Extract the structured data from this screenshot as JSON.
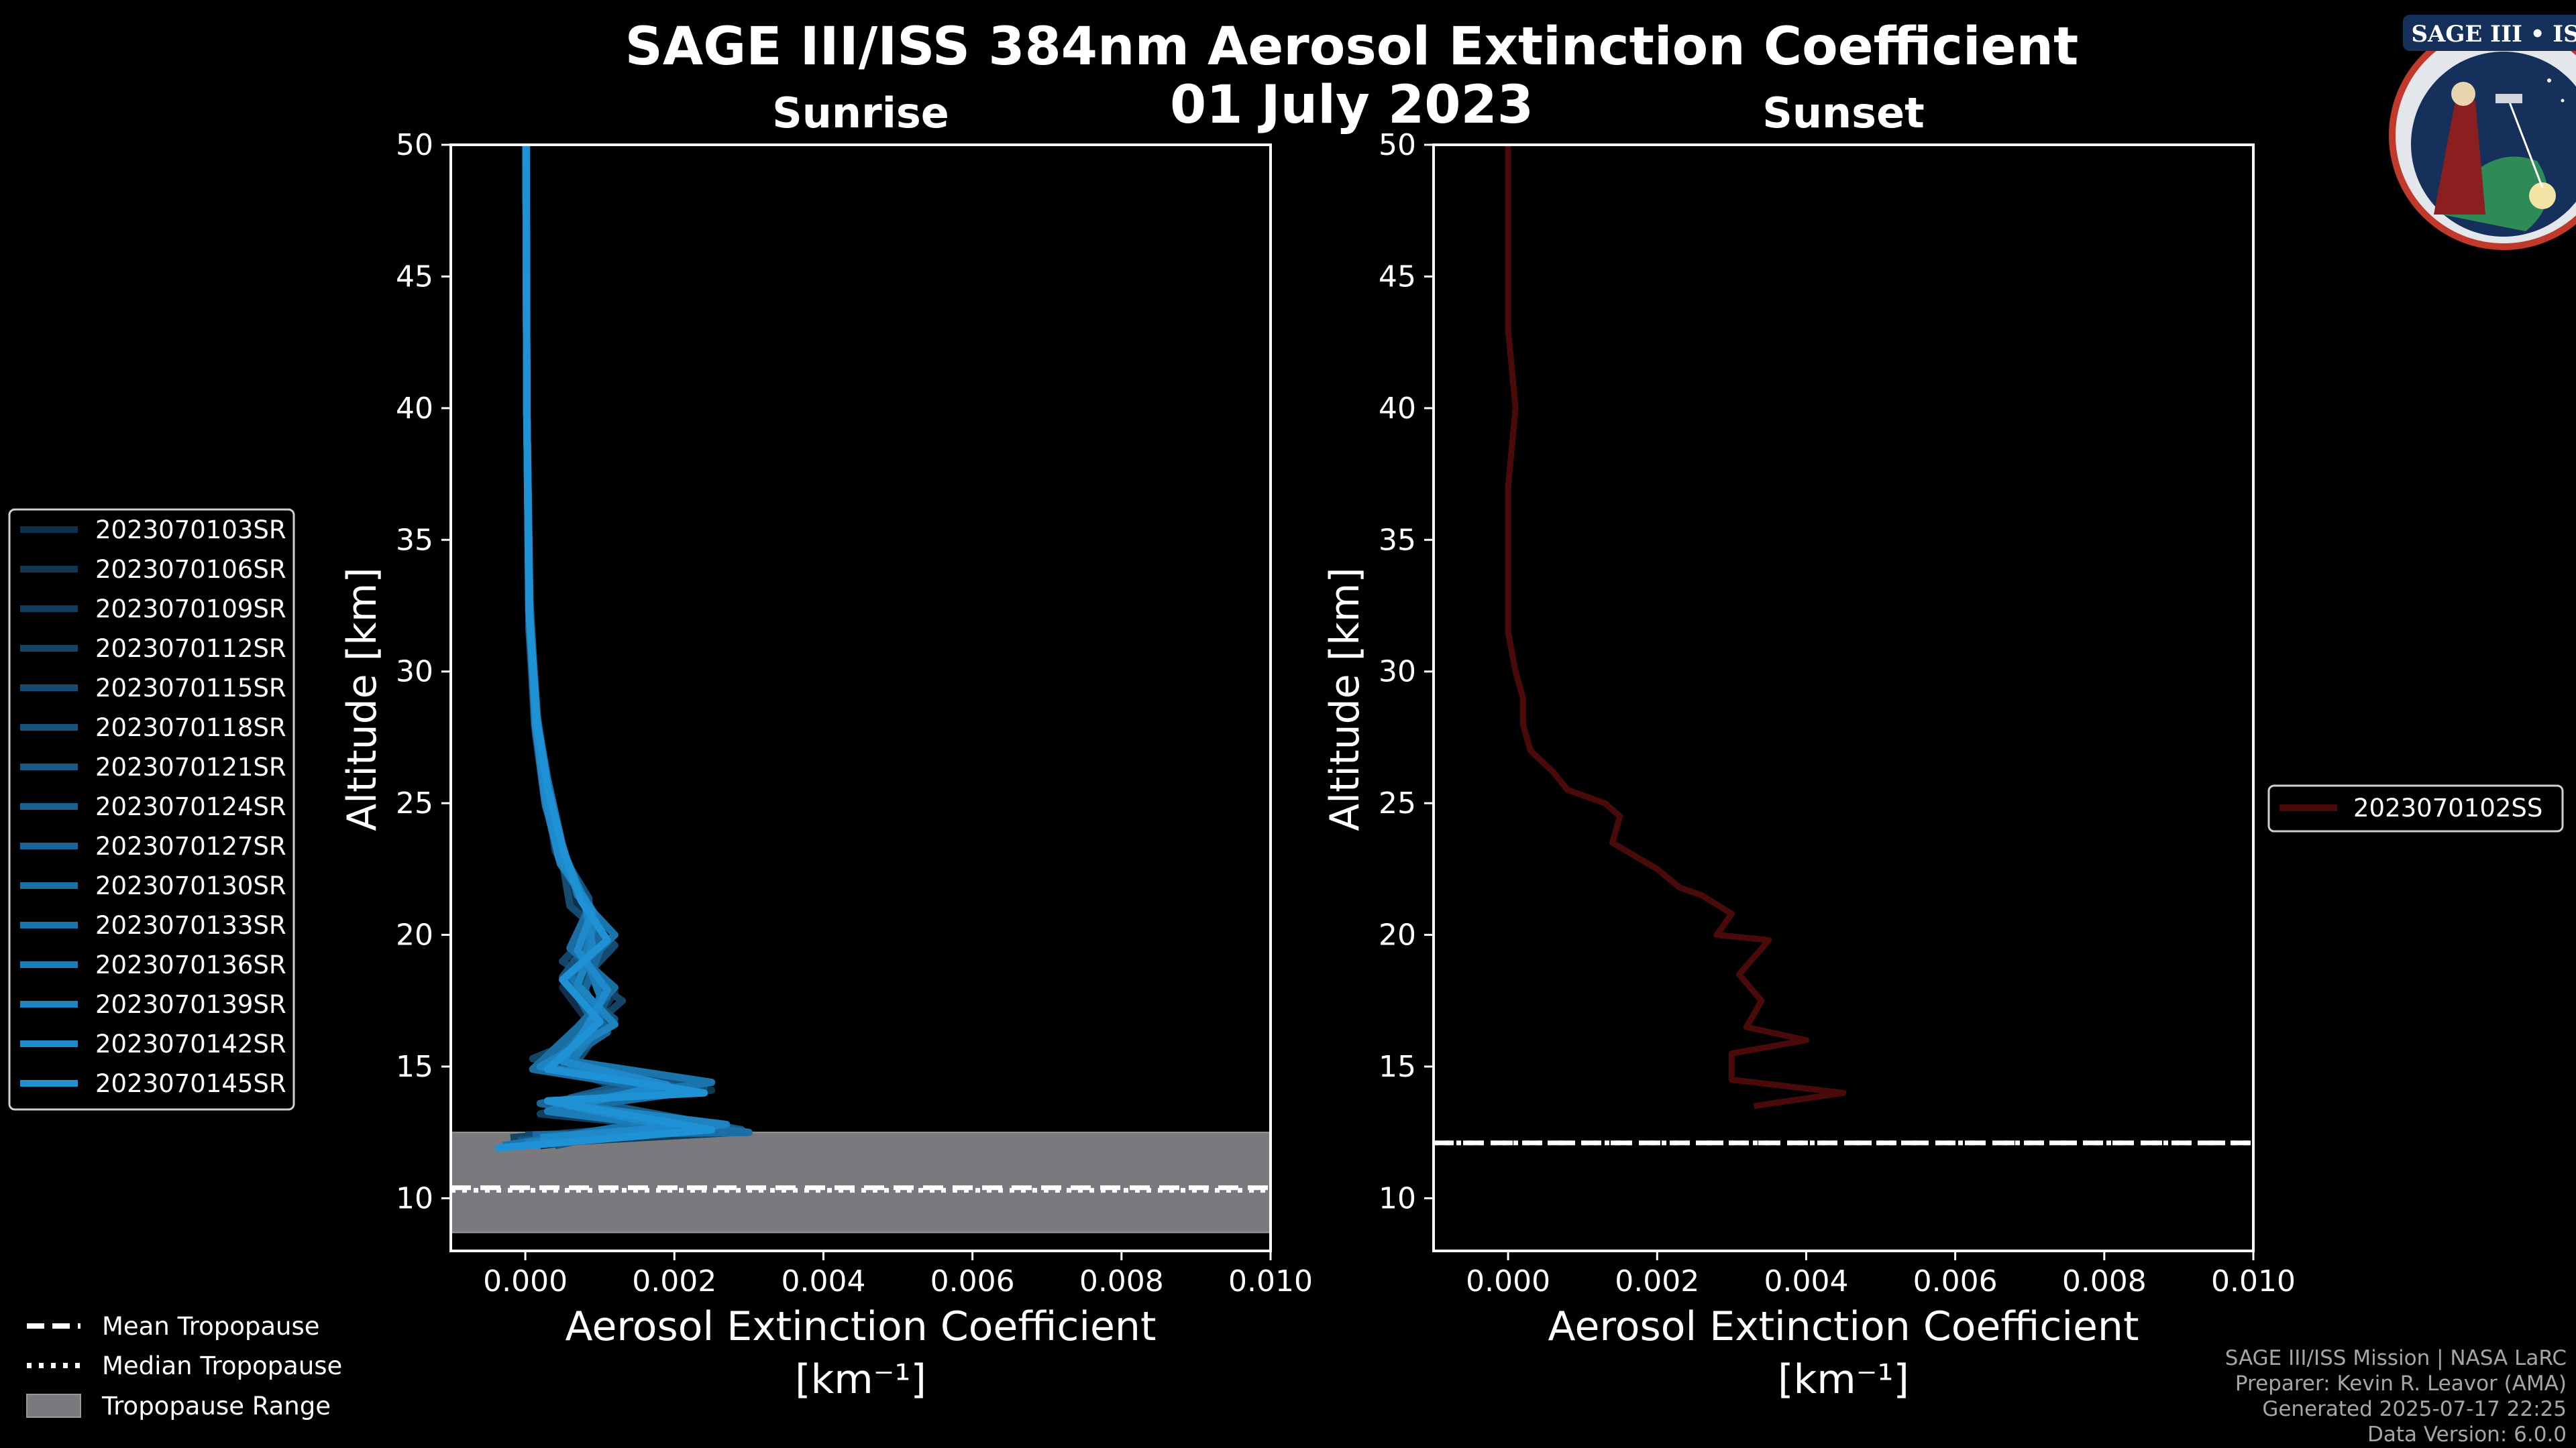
{
  "title": {
    "line1": "SAGE III/ISS 384nm Aerosol Extinction Coefficient",
    "line2": "01 July 2023"
  },
  "colors": {
    "background": "#000000",
    "sunrise_series_base": "#1b8fd6",
    "sunset_series": "#4a0a0a",
    "tropopause_range": "#7a7a7e",
    "axis": "#ffffff",
    "footer": "#a6a6a6"
  },
  "logo": {
    "text": "SAGE III • ISS",
    "icon": "sage-mission-patch-icon"
  },
  "footer": {
    "line1": "SAGE III/ISS Mission | NASA LaRC",
    "line2": "Preparer: Kevin R. Leavor (AMA)",
    "line3": "Generated 2025-07-17 22:25",
    "line4": "Data Version: 6.0.0"
  },
  "tropopause_legend": {
    "mean": "Mean Tropopause",
    "median": "Median Tropopause",
    "range": "Tropopause Range"
  },
  "chart_data": [
    {
      "type": "line",
      "title": "Sunrise",
      "xlabel": "Aerosol Extinction Coefficient",
      "xunit": "[km⁻¹]",
      "ylabel": "Altitude [km]",
      "xlim": [
        -0.001,
        0.01
      ],
      "ylim": [
        8,
        50
      ],
      "xticks": [
        "0.000",
        "0.002",
        "0.004",
        "0.006",
        "0.008",
        "0.010"
      ],
      "xtick_values": [
        0,
        0.002,
        0.004,
        0.006,
        0.008,
        0.01
      ],
      "yticks": [
        10,
        15,
        20,
        25,
        30,
        35,
        40,
        45,
        50
      ],
      "tropopause": {
        "mean": 10.4,
        "median": 10.3,
        "range": [
          8.7,
          12.5
        ]
      },
      "legend_position": "outside-left",
      "series": [
        {
          "name": "2023070103SR",
          "color": "#0f2f4a",
          "x": [
            0.0002,
            0.0023,
            0.0004,
            0.0017,
            0.0002,
            0.0009,
            0.0005,
            0.0011,
            0.0007,
            0.00045,
            0.00025,
            0.00012,
            5e-05,
            2e-05,
            2e-05
          ],
          "y": [
            12.0,
            12.7,
            13.5,
            14.3,
            15.2,
            16.5,
            18.0,
            19.5,
            21.0,
            23.0,
            25.5,
            28.0,
            32.0,
            40.0,
            50.0
          ]
        },
        {
          "name": "2023070106SR",
          "color": "#113652",
          "x": [
            0.0001,
            0.0018,
            0.0006,
            0.0025,
            0.0003,
            0.0008,
            0.0012,
            0.0006,
            0.0009,
            0.0005,
            0.0003,
            0.00015,
            6e-05,
            2e-05,
            1e-05
          ],
          "y": [
            12.2,
            12.9,
            13.6,
            14.1,
            14.9,
            16.2,
            17.8,
            19.2,
            20.8,
            22.8,
            25.0,
            27.5,
            31.5,
            40.0,
            50.0
          ]
        },
        {
          "name": "2023070109SR",
          "color": "#133d5c",
          "x": [
            0.0003,
            0.0028,
            0.0002,
            0.0015,
            0.0005,
            0.0011,
            0.0006,
            0.001,
            0.0008,
            0.0004,
            0.00028,
            0.00014,
            5e-05,
            2e-05,
            1e-05
          ],
          "y": [
            12.1,
            12.5,
            13.2,
            13.9,
            15.0,
            16.6,
            18.3,
            19.8,
            21.2,
            23.2,
            25.6,
            28.2,
            32.5,
            40.0,
            50.0
          ]
        },
        {
          "name": "2023070112SR",
          "color": "#144466",
          "x": [
            -0.0002,
            0.002,
            0.0007,
            0.0022,
            0.0001,
            0.0007,
            0.0013,
            0.0005,
            0.001,
            0.00055,
            0.00032,
            0.00016,
            6e-05,
            2e-05,
            1e-05
          ],
          "y": [
            12.3,
            12.8,
            13.7,
            14.4,
            15.3,
            16.0,
            17.5,
            19.0,
            20.5,
            22.5,
            24.8,
            27.8,
            31.8,
            40.0,
            50.0
          ]
        },
        {
          "name": "2023070115SR",
          "color": "#154b70",
          "x": [
            0.0,
            0.0026,
            0.0005,
            0.0019,
            0.0006,
            0.001,
            0.0007,
            0.0012,
            0.0006,
            0.00048,
            0.00026,
            0.00013,
            5e-05,
            2e-05,
            1e-05
          ],
          "y": [
            12.4,
            12.6,
            13.4,
            14.0,
            14.8,
            16.4,
            18.1,
            19.6,
            21.1,
            23.1,
            25.3,
            28.1,
            32.2,
            40.0,
            50.0
          ]
        },
        {
          "name": "2023070118SR",
          "color": "#16527a",
          "x": [
            0.0004,
            0.0019,
            0.0003,
            0.0024,
            0.0002,
            0.0012,
            0.0005,
            0.0009,
            0.00085,
            0.00042,
            0.0003,
            0.00015,
            6e-05,
            2e-05,
            1e-05
          ],
          "y": [
            12.0,
            12.9,
            13.3,
            14.2,
            15.1,
            16.8,
            18.4,
            19.9,
            21.4,
            23.4,
            25.8,
            28.4,
            32.8,
            40.0,
            50.0
          ]
        },
        {
          "name": "2023070121SR",
          "color": "#175985",
          "x": [
            -0.0001,
            0.0029,
            0.0006,
            0.0016,
            0.0004,
            0.0008,
            0.0011,
            0.0007,
            0.00095,
            0.00052,
            0.00027,
            0.00014,
            5e-05,
            2e-05,
            1e-05
          ],
          "y": [
            12.2,
            12.6,
            13.8,
            14.5,
            15.4,
            16.1,
            17.6,
            19.1,
            20.6,
            22.6,
            24.9,
            27.6,
            31.6,
            40.0,
            50.0
          ]
        },
        {
          "name": "2023070124SR",
          "color": "#18608f",
          "x": [
            0.0002,
            0.0021,
            0.0004,
            0.0023,
            0.0003,
            0.0009,
            0.0006,
            0.0011,
            0.00075,
            0.00046,
            0.00029,
            0.00016,
            6e-05,
            2e-05,
            1e-05
          ],
          "y": [
            12.1,
            12.8,
            13.5,
            14.1,
            15.0,
            16.7,
            18.2,
            19.7,
            21.3,
            23.3,
            25.7,
            28.3,
            32.4,
            40.0,
            50.0
          ]
        },
        {
          "name": "2023070127SR",
          "color": "#196799",
          "x": [
            0.0005,
            0.0024,
            0.0002,
            0.0018,
            0.0005,
            0.0011,
            0.0008,
            0.001,
            0.0009,
            0.0005,
            0.00031,
            0.00015,
            5e-05,
            2e-05,
            1e-05
          ],
          "y": [
            12.3,
            12.7,
            13.6,
            14.3,
            15.2,
            16.3,
            17.9,
            19.4,
            20.9,
            22.9,
            25.2,
            27.9,
            32.0,
            40.0,
            50.0
          ]
        },
        {
          "name": "2023070130SR",
          "color": "#1a6ea3",
          "x": [
            0.0001,
            0.003,
            0.0005,
            0.0021,
            0.0001,
            0.0007,
            0.0012,
            0.0006,
            0.00085,
            0.00044,
            0.00028,
            0.00013,
            6e-05,
            2e-05,
            1e-05
          ],
          "y": [
            12.4,
            12.5,
            13.4,
            14.0,
            14.9,
            16.5,
            18.0,
            19.5,
            21.0,
            23.0,
            25.4,
            28.0,
            32.1,
            40.0,
            50.0
          ]
        },
        {
          "name": "2023070133SR",
          "color": "#1b75ad",
          "x": [
            -0.0003,
            0.0017,
            0.0007,
            0.0025,
            0.0004,
            0.001,
            0.0006,
            0.0012,
            0.0007,
            0.00049,
            0.0003,
            0.00014,
            5e-05,
            2e-05,
            1e-05
          ],
          "y": [
            12.0,
            12.9,
            13.7,
            14.4,
            15.3,
            16.9,
            18.5,
            20.0,
            21.5,
            23.5,
            25.9,
            28.5,
            32.6,
            40.0,
            50.0
          ]
        },
        {
          "name": "2023070136SR",
          "color": "#1c7cb7",
          "x": [
            0.0003,
            0.0023,
            0.0003,
            0.0017,
            0.0006,
            0.0009,
            0.001,
            0.0008,
            0.00095,
            0.00047,
            0.00026,
            0.00015,
            6e-05,
            2e-05,
            1e-05
          ],
          "y": [
            12.2,
            12.6,
            13.3,
            14.2,
            15.1,
            16.2,
            17.7,
            19.2,
            20.7,
            22.7,
            25.1,
            27.7,
            31.9,
            40.0,
            50.0
          ]
        },
        {
          "name": "2023070139SR",
          "color": "#1d83c1",
          "x": [
            0.0,
            0.0027,
            0.0004,
            0.0022,
            0.0002,
            0.0012,
            0.0007,
            0.0009,
            0.0008,
            0.00051,
            0.00029,
            0.00016,
            5e-05,
            2e-05,
            1e-05
          ],
          "y": [
            12.1,
            12.8,
            13.6,
            14.1,
            15.0,
            16.6,
            18.1,
            19.6,
            21.2,
            23.2,
            25.5,
            28.1,
            32.3,
            40.0,
            50.0
          ]
        },
        {
          "name": "2023070142SR",
          "color": "#1e8acb",
          "x": [
            0.0002,
            0.002,
            0.0006,
            0.0019,
            0.0005,
            0.0008,
            0.0011,
            0.0007,
            0.0009,
            0.00045,
            0.00027,
            0.00014,
            6e-05,
            2e-05,
            1e-05
          ],
          "y": [
            12.3,
            12.7,
            13.5,
            14.3,
            15.2,
            16.4,
            17.9,
            19.4,
            20.9,
            22.9,
            25.3,
            27.9,
            32.0,
            40.0,
            50.0
          ]
        },
        {
          "name": "2023070145SR",
          "color": "#1f91d5",
          "x": [
            -0.0004,
            0.0025,
            0.0003,
            0.0024,
            0.0003,
            0.001,
            0.0005,
            0.0011,
            0.00075,
            0.0005,
            0.0003,
            0.00015,
            5e-05,
            2e-05,
            1e-05
          ],
          "y": [
            11.9,
            12.6,
            13.7,
            14.0,
            14.9,
            16.7,
            18.3,
            19.8,
            21.3,
            23.3,
            25.6,
            28.2,
            32.4,
            40.0,
            50.0
          ]
        }
      ]
    },
    {
      "type": "line",
      "title": "Sunset",
      "xlabel": "Aerosol Extinction Coefficient",
      "xunit": "[km⁻¹]",
      "ylabel": "Altitude [km]",
      "xlim": [
        -0.001,
        0.01
      ],
      "ylim": [
        8,
        50
      ],
      "xticks": [
        "0.000",
        "0.002",
        "0.004",
        "0.006",
        "0.008",
        "0.010"
      ],
      "xtick_values": [
        0,
        0.002,
        0.004,
        0.006,
        0.008,
        0.01
      ],
      "yticks": [
        10,
        15,
        20,
        25,
        30,
        35,
        40,
        45,
        50
      ],
      "tropopause": {
        "mean": 12.1,
        "median": 12.1
      },
      "legend_position": "outside-right",
      "series": [
        {
          "name": "2023070102SS",
          "color": "#4a0a0a",
          "x": [
            0.0033,
            0.0045,
            0.003,
            0.003,
            0.004,
            0.0032,
            0.0034,
            0.0031,
            0.0035,
            0.0028,
            0.003,
            0.0026,
            0.0023,
            0.002,
            0.0014,
            0.0015,
            0.0013,
            0.0008,
            0.0006,
            0.0003,
            0.0002,
            0.0002,
            0.0001,
            0.0,
            0.0,
            0.0,
            0.0,
            0.0001,
            0.0,
            0.0,
            0.0
          ],
          "y": [
            13.5,
            14.0,
            14.5,
            15.5,
            16.0,
            16.5,
            17.5,
            18.5,
            19.8,
            20.0,
            20.8,
            21.5,
            21.8,
            22.5,
            23.5,
            24.5,
            25.0,
            25.5,
            26.2,
            27.0,
            28.0,
            29.0,
            30.0,
            31.5,
            33.0,
            35.0,
            37.0,
            40.0,
            43.0,
            46.0,
            50.0
          ]
        }
      ]
    }
  ]
}
